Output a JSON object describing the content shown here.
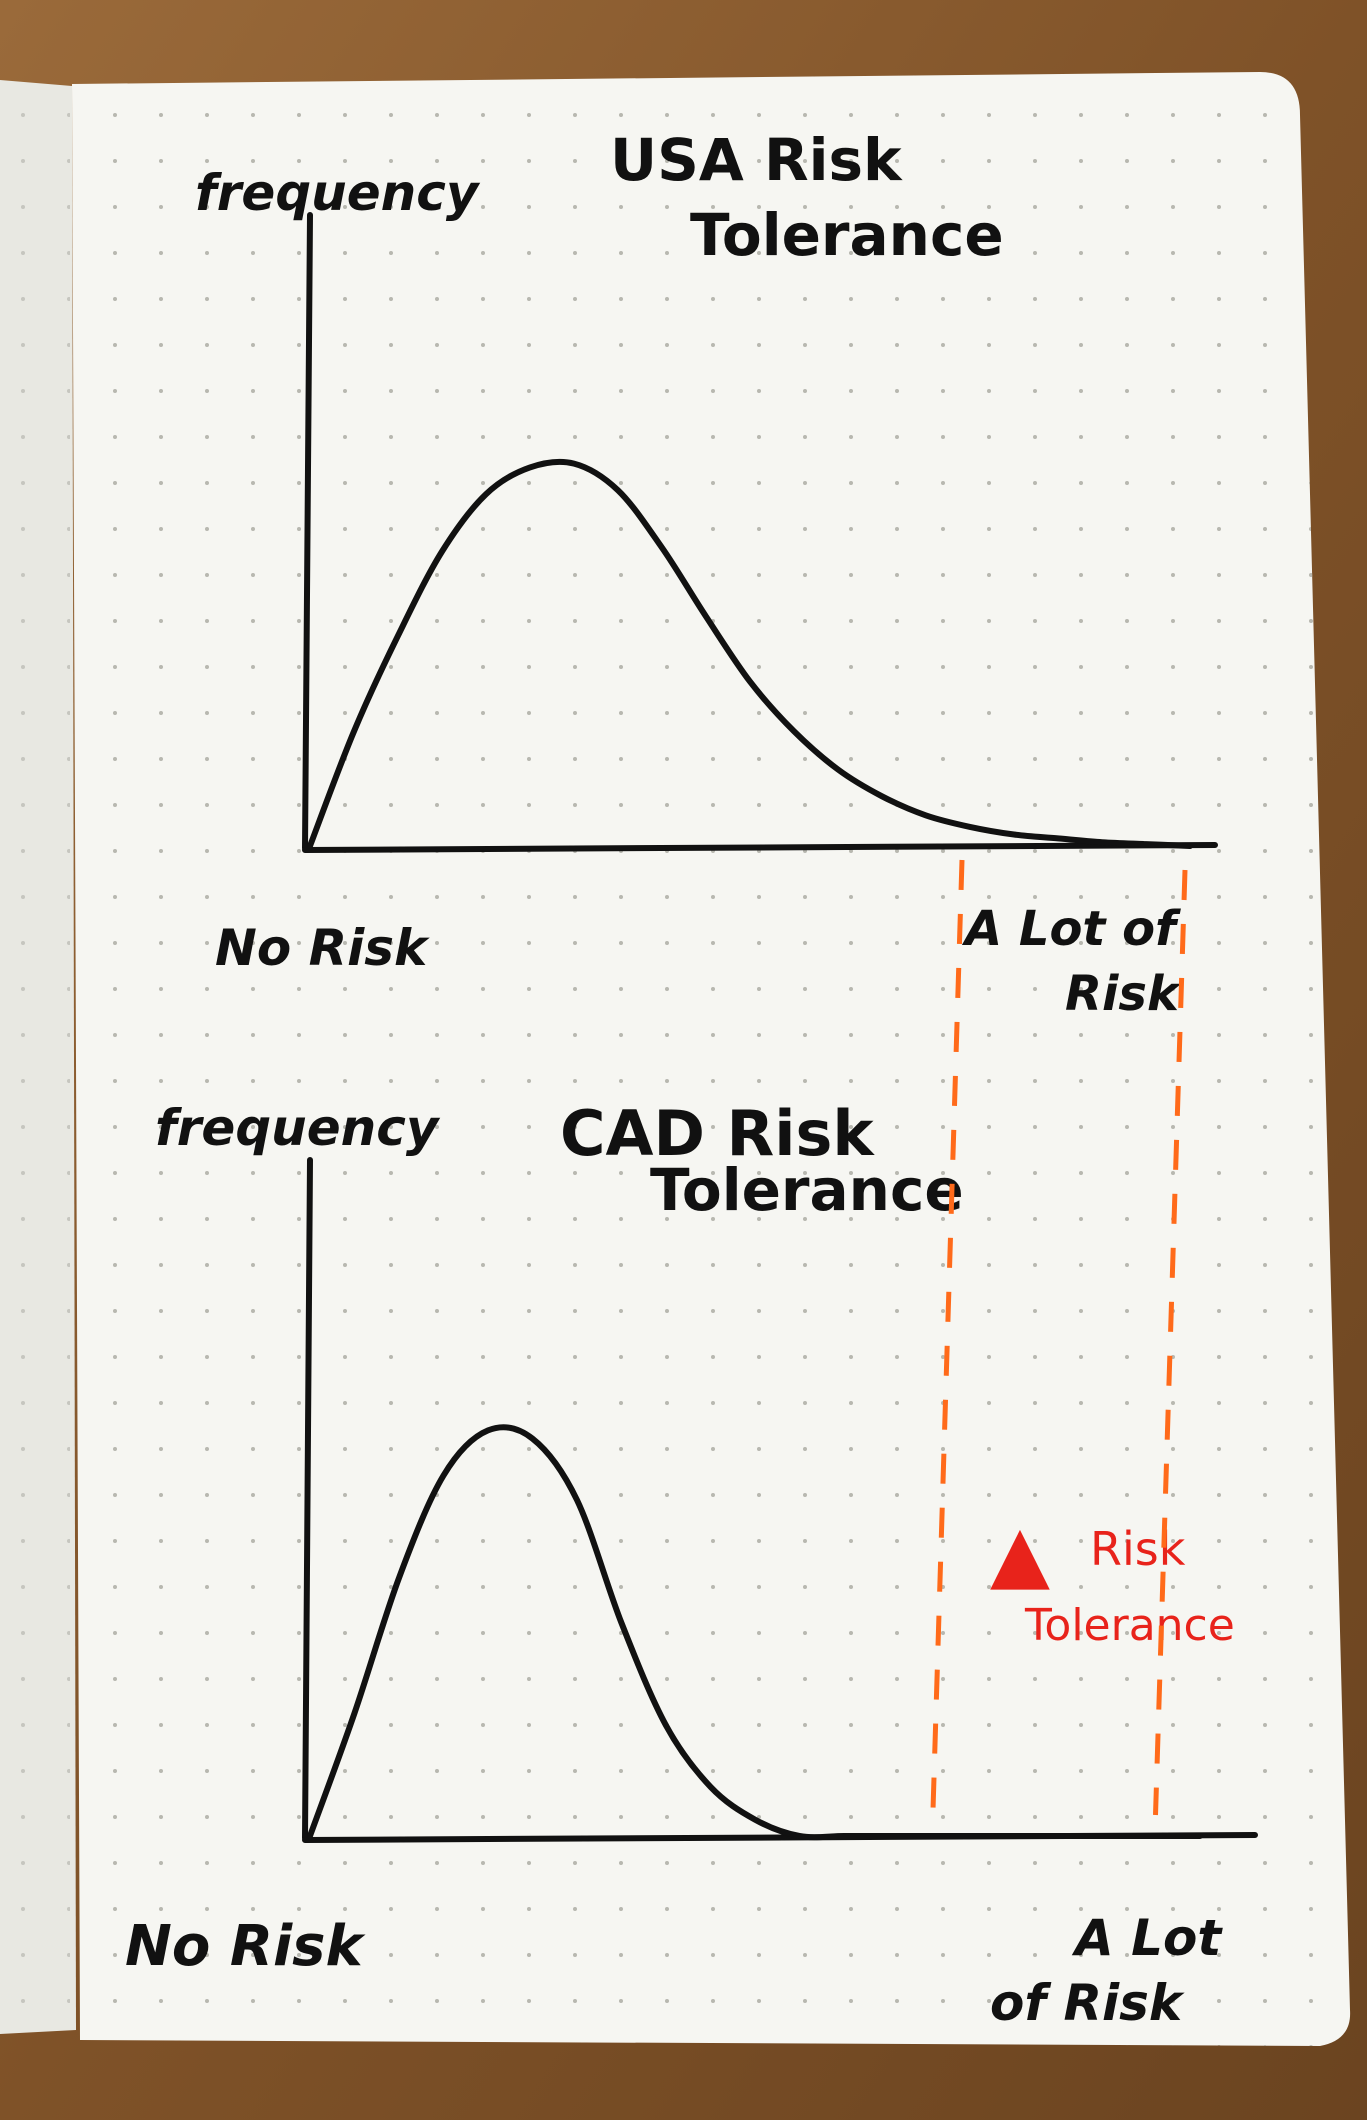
{
  "chart_data": [
    {
      "type": "line",
      "title": "USA Risk Tolerance",
      "title_lines": [
        "USA Risk",
        "Tolerance"
      ],
      "ylabel": "frequency",
      "x_start_label": "No Risk",
      "x_end_label_lines": [
        "A Lot of",
        "Risk"
      ],
      "grid": false,
      "legend": "none",
      "x": [
        0,
        0.05,
        0.1,
        0.15,
        0.2,
        0.25,
        0.3,
        0.35,
        0.4,
        0.45,
        0.5,
        0.55,
        0.6,
        0.65,
        0.7,
        0.75,
        0.8,
        0.85,
        0.9,
        0.95,
        1.0
      ],
      "values": [
        0.0,
        0.3,
        0.55,
        0.77,
        0.92,
        0.99,
        1.0,
        0.93,
        0.78,
        0.6,
        0.43,
        0.3,
        0.2,
        0.13,
        0.08,
        0.05,
        0.03,
        0.02,
        0.01,
        0.005,
        0.0
      ],
      "xlim": [
        0,
        1
      ],
      "ylim": [
        0,
        1.65
      ],
      "stroke_color": "#111111"
    },
    {
      "type": "line",
      "title": "CAD Risk Tolerance",
      "title_lines": [
        "CAD Risk",
        "Tolerance"
      ],
      "ylabel": "frequency",
      "x_start_label": "No Risk",
      "x_end_label_lines": [
        "A Lot",
        "of Risk"
      ],
      "grid": false,
      "legend": "none",
      "x": [
        0,
        0.05,
        0.1,
        0.15,
        0.2,
        0.25,
        0.3,
        0.35,
        0.4,
        0.45,
        0.5,
        0.55,
        0.6,
        0.65,
        0.7,
        0.75,
        0.8,
        0.85,
        0.9,
        0.95,
        1.0
      ],
      "values": [
        0.0,
        0.3,
        0.63,
        0.88,
        0.99,
        0.97,
        0.82,
        0.52,
        0.27,
        0.12,
        0.04,
        0.0,
        0.0,
        0.0,
        0.0,
        0.0,
        0.0,
        0.0,
        0.0,
        0.0,
        0.0
      ],
      "xlim": [
        0,
        1
      ],
      "ylim": [
        0,
        1.65
      ],
      "stroke_color": "#111111",
      "annotation": {
        "symbol": "▲",
        "lines": [
          "Risk",
          "Tolerance"
        ],
        "color": "#e8231b"
      },
      "dashed_range_x": [
        0.7,
        0.95
      ],
      "dashed_color": "#ff6a1a"
    }
  ],
  "colors": {
    "paper": "#f6f6f2",
    "ink": "#111111",
    "red": "#e8231b",
    "orange": "#ff6a1a",
    "dots": "#b8b8b0"
  }
}
